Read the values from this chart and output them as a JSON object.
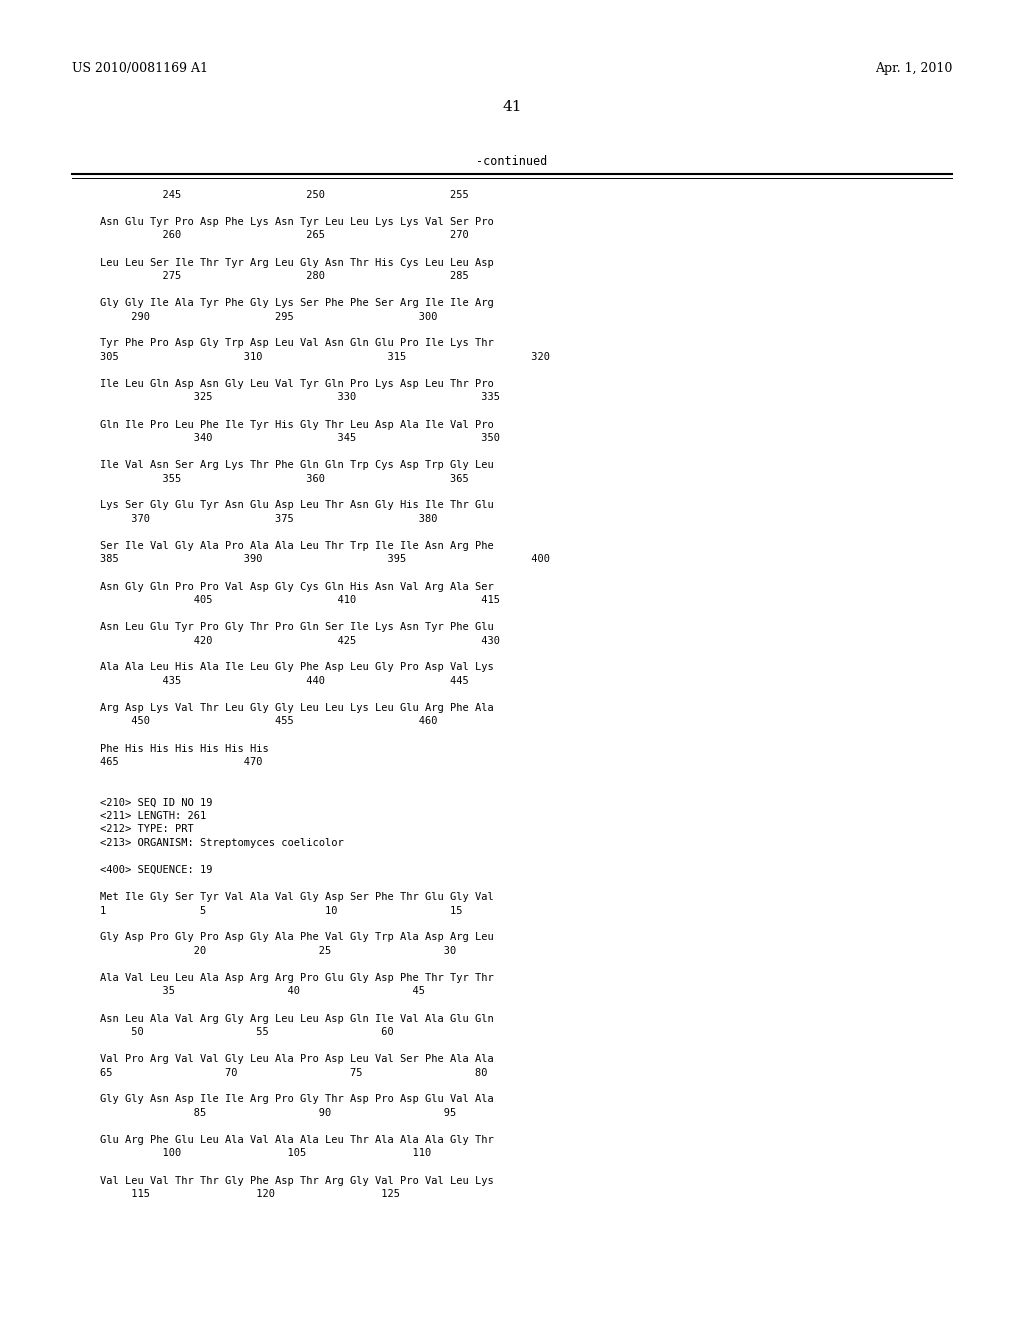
{
  "header_left": "US 2010/0081169 A1",
  "header_right": "Apr. 1, 2010",
  "page_number": "41",
  "continued_label": "-continued",
  "background_color": "#ffffff",
  "text_color": "#000000",
  "font_size": 7.5,
  "mono_font": "DejaVu Sans Mono",
  "header_font": "DejaVu Serif",
  "lines": [
    "          245                    250                    255",
    "",
    "Asn Glu Tyr Pro Asp Phe Lys Asn Tyr Leu Leu Lys Lys Val Ser Pro",
    "          260                    265                    270",
    "",
    "Leu Leu Ser Ile Thr Tyr Arg Leu Gly Asn Thr His Cys Leu Leu Asp",
    "          275                    280                    285",
    "",
    "Gly Gly Ile Ala Tyr Phe Gly Lys Ser Phe Phe Ser Arg Ile Ile Arg",
    "     290                    295                    300",
    "",
    "Tyr Phe Pro Asp Gly Trp Asp Leu Val Asn Gln Glu Pro Ile Lys Thr",
    "305                    310                    315                    320",
    "",
    "Ile Leu Gln Asp Asn Gly Leu Val Tyr Gln Pro Lys Asp Leu Thr Pro",
    "               325                    330                    335",
    "",
    "Gln Ile Pro Leu Phe Ile Tyr His Gly Thr Leu Asp Ala Ile Val Pro",
    "               340                    345                    350",
    "",
    "Ile Val Asn Ser Arg Lys Thr Phe Gln Gln Trp Cys Asp Trp Gly Leu",
    "          355                    360                    365",
    "",
    "Lys Ser Gly Glu Tyr Asn Glu Asp Leu Thr Asn Gly His Ile Thr Glu",
    "     370                    375                    380",
    "",
    "Ser Ile Val Gly Ala Pro Ala Ala Leu Thr Trp Ile Ile Asn Arg Phe",
    "385                    390                    395                    400",
    "",
    "Asn Gly Gln Pro Pro Val Asp Gly Cys Gln His Asn Val Arg Ala Ser",
    "               405                    410                    415",
    "",
    "Asn Leu Glu Tyr Pro Gly Thr Pro Gln Ser Ile Lys Asn Tyr Phe Glu",
    "               420                    425                    430",
    "",
    "Ala Ala Leu His Ala Ile Leu Gly Phe Asp Leu Gly Pro Asp Val Lys",
    "          435                    440                    445",
    "",
    "Arg Asp Lys Val Thr Leu Gly Gly Leu Leu Lys Leu Glu Arg Phe Ala",
    "     450                    455                    460",
    "",
    "Phe His His His His His His",
    "465                    470",
    "",
    "",
    "<210> SEQ ID NO 19",
    "<211> LENGTH: 261",
    "<212> TYPE: PRT",
    "<213> ORGANISM: Streptomyces coelicolor",
    "",
    "<400> SEQUENCE: 19",
    "",
    "Met Ile Gly Ser Tyr Val Ala Val Gly Asp Ser Phe Thr Glu Gly Val",
    "1               5                   10                  15",
    "",
    "Gly Asp Pro Gly Pro Asp Gly Ala Phe Val Gly Trp Ala Asp Arg Leu",
    "               20                  25                  30",
    "",
    "Ala Val Leu Leu Ala Asp Arg Arg Pro Glu Gly Asp Phe Thr Tyr Thr",
    "          35                  40                  45",
    "",
    "Asn Leu Ala Val Arg Gly Arg Leu Leu Asp Gln Ile Val Ala Glu Gln",
    "     50                  55                  60",
    "",
    "Val Pro Arg Val Val Gly Leu Ala Pro Asp Leu Val Ser Phe Ala Ala",
    "65                  70                  75                  80",
    "",
    "Gly Gly Asn Asp Ile Ile Arg Pro Gly Thr Asp Pro Asp Glu Val Ala",
    "               85                  90                  95",
    "",
    "Glu Arg Phe Glu Leu Ala Val Ala Ala Leu Thr Ala Ala Ala Gly Thr",
    "          100                 105                 110",
    "",
    "Val Leu Val Thr Thr Gly Phe Asp Thr Arg Gly Val Pro Val Leu Lys",
    "     115                 120                 125"
  ]
}
